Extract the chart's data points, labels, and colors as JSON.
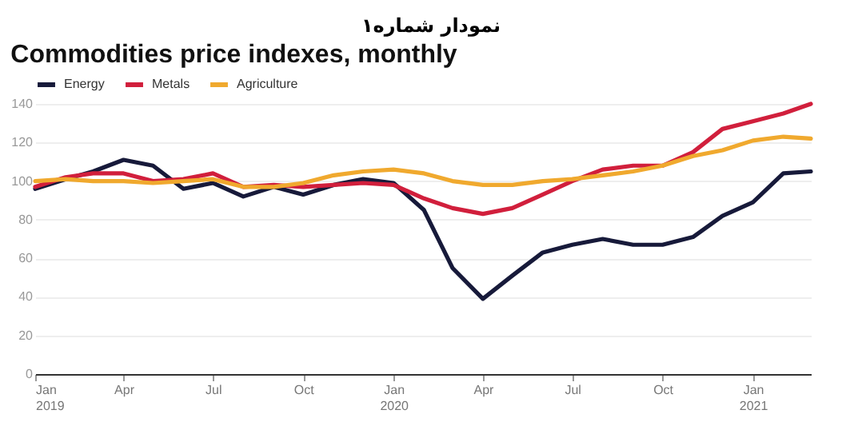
{
  "chart_data": {
    "type": "line",
    "subtitle": "نمودار شماره۱",
    "title": "Commodities price indexes, monthly",
    "x": [
      "2019-01",
      "2019-02",
      "2019-03",
      "2019-04",
      "2019-05",
      "2019-06",
      "2019-07",
      "2019-08",
      "2019-09",
      "2019-10",
      "2019-11",
      "2019-12",
      "2020-01",
      "2020-02",
      "2020-03",
      "2020-04",
      "2020-05",
      "2020-06",
      "2020-07",
      "2020-08",
      "2020-09",
      "2020-10",
      "2020-11",
      "2020-12",
      "2021-01",
      "2021-02",
      "2021-03"
    ],
    "series": [
      {
        "name": "Energy",
        "color": "#171a3a",
        "values": [
          96,
          101,
          105,
          111,
          108,
          96,
          99,
          92,
          97,
          93,
          98,
          101,
          99,
          85,
          55,
          39,
          51,
          63,
          67,
          70,
          67,
          67,
          71,
          82,
          89,
          104,
          105
        ]
      },
      {
        "name": "Metals",
        "color": "#d11f3c",
        "values": [
          97,
          102,
          104,
          104,
          100,
          101,
          104,
          97,
          98,
          97,
          98,
          99,
          98,
          91,
          86,
          83,
          86,
          93,
          100,
          106,
          108,
          108,
          115,
          127,
          131,
          135,
          140
        ]
      },
      {
        "name": "Agriculture",
        "color": "#f0a92e",
        "values": [
          100,
          101,
          100,
          100,
          99,
          100,
          101,
          97,
          97,
          99,
          103,
          105,
          106,
          104,
          100,
          98,
          98,
          100,
          101,
          103,
          105,
          108,
          113,
          116,
          121,
          123,
          122
        ]
      }
    ],
    "xlim": [
      "2019-01",
      "2021-03"
    ],
    "xticks": [
      {
        "value": "2019-01",
        "label": "Jan 2019"
      },
      {
        "value": "2019-04",
        "label": "Apr"
      },
      {
        "value": "2019-07",
        "label": "Jul"
      },
      {
        "value": "2019-10",
        "label": "Oct"
      },
      {
        "value": "2020-01",
        "label": "Jan 2020"
      },
      {
        "value": "2020-04",
        "label": "Apr"
      },
      {
        "value": "2020-07",
        "label": "Jul"
      },
      {
        "value": "2020-10",
        "label": "Oct"
      },
      {
        "value": "2021-01",
        "label": "Jan 2021"
      }
    ],
    "ylim": [
      0,
      140
    ],
    "yticks": [
      0,
      20,
      40,
      60,
      80,
      100,
      120,
      140
    ],
    "grid": "y",
    "legend": "top left",
    "line_style": "solid",
    "marker": "none"
  }
}
